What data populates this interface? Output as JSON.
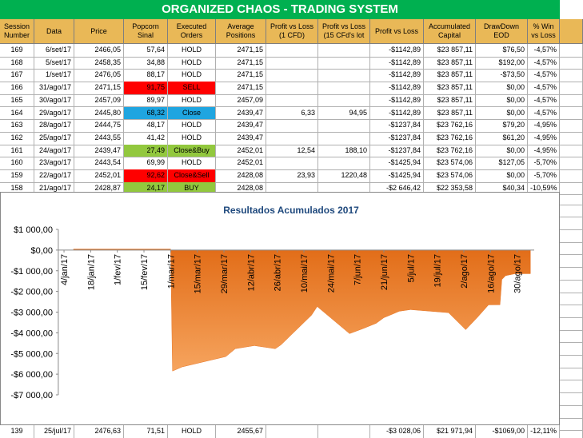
{
  "header": {
    "title": "ORGANIZED CHAOS - TRADING SYSTEM"
  },
  "table": {
    "columns": [
      "Session Number",
      "Data",
      "Price",
      "Popcorn Sinal",
      "Executed Orders",
      "Average Positions",
      "Profit vs Loss (1 CFD)",
      "Profit vs Loss (15 CFd's lot",
      "Profit vs Loss",
      "Accumulated Capital",
      "DrawDown EOD",
      "% Win vs Loss"
    ],
    "rows": [
      {
        "cells": [
          "169",
          "6/set/17",
          "2466,05",
          "57,64",
          "HOLD",
          "2471,15",
          null,
          null,
          "-$1142,89",
          "$23 857,11",
          "$76,50",
          "-4,57%"
        ]
      },
      {
        "cells": [
          "168",
          "5/set/17",
          "2458,35",
          "34,88",
          "HOLD",
          "2471,15",
          null,
          null,
          "-$1142,89",
          "$23 857,11",
          "$192,00",
          "-4,57%"
        ]
      },
      {
        "cells": [
          "167",
          "1/set/17",
          "2476,05",
          "88,17",
          "HOLD",
          "2471,15",
          null,
          null,
          "-$1142,89",
          "$23 857,11",
          "-$73,50",
          "-4,57%"
        ]
      },
      {
        "cells": [
          "166",
          "31/ago/17",
          "2471,15",
          "91,75",
          "SELL",
          "2471,15",
          null,
          null,
          "-$1142,89",
          "$23 857,11",
          "$0,00",
          "-4,57%"
        ],
        "highlight": "#ff0000"
      },
      {
        "cells": [
          "165",
          "30/ago/17",
          "2457,09",
          "89,97",
          "HOLD",
          "2457,09",
          null,
          null,
          "-$1142,89",
          "$23 857,11",
          "$0,00",
          "-4,57%"
        ]
      },
      {
        "cells": [
          "164",
          "29/ago/17",
          "2445,80",
          "68,32",
          "Close",
          "2439,47",
          "6,33",
          "94,95",
          "-$1142,89",
          "$23 857,11",
          "$0,00",
          "-4,57%"
        ],
        "highlight": "#1fa5e0"
      },
      {
        "cells": [
          "163",
          "28/ago/17",
          "2444,75",
          "48,17",
          "HOLD",
          "2439,47",
          null,
          null,
          "-$1237,84",
          "$23 762,16",
          "$79,20",
          "-4,95%"
        ]
      },
      {
        "cells": [
          "162",
          "25/ago/17",
          "2443,55",
          "41,42",
          "HOLD",
          "2439,47",
          null,
          null,
          "-$1237,84",
          "$23 762,16",
          "$61,20",
          "-4,95%"
        ]
      },
      {
        "cells": [
          "161",
          "24/ago/17",
          "2439,47",
          "27,49",
          "Close&Buy",
          "2452,01",
          "12,54",
          "188,10",
          "-$1237,84",
          "$23 762,16",
          "$0,00",
          "-4,95%"
        ],
        "highlight": "#92c83e"
      },
      {
        "cells": [
          "160",
          "23/ago/17",
          "2443,54",
          "69,99",
          "HOLD",
          "2452,01",
          null,
          null,
          "-$1425,94",
          "$23 574,06",
          "$127,05",
          "-5,70%"
        ]
      },
      {
        "cells": [
          "159",
          "22/ago/17",
          "2452,01",
          "92,62",
          "Close&Sell",
          "2428,08",
          "23,93",
          "1220,48",
          "-$1425,94",
          "$23 574,06",
          "$0,00",
          "-5,70%"
        ],
        "highlight": "#ff0000"
      },
      {
        "cells": [
          "158",
          "21/ago/17",
          "2428,87",
          "24,17",
          "BUY",
          "2428,08",
          null,
          null,
          "-$2 646,42",
          "$22 353,58",
          "$40,34",
          "-10,59%"
        ],
        "highlight": "#92c83e"
      }
    ],
    "last_row": {
      "cells": [
        "139",
        "25/jul/17",
        "2476,63",
        "71,51",
        "HOLD",
        "2455,67",
        null,
        null,
        "-$3 028,06",
        "$21 971,94",
        "-$1069,00",
        "-12,11%"
      ]
    }
  },
  "chart": {
    "type": "area",
    "title": "Resultados Acumulados 2017",
    "color": "#e8782a",
    "xlim": [
      "2017-01-01",
      "2017-09-08"
    ],
    "xticks": [
      {
        "value": "2017-01-04",
        "label": "4/jan/17"
      },
      {
        "value": "2017-01-18",
        "label": "18/jan/17"
      },
      {
        "value": "2017-02-01",
        "label": "1/fev/17"
      },
      {
        "value": "2017-02-15",
        "label": "15/fev/17"
      },
      {
        "value": "2017-03-01",
        "label": "1/mar/17"
      },
      {
        "value": "2017-03-15",
        "label": "15/mar/17"
      },
      {
        "value": "2017-03-29",
        "label": "29/mar/17"
      },
      {
        "value": "2017-04-12",
        "label": "12/abr/17"
      },
      {
        "value": "2017-04-26",
        "label": "26/abr/17"
      },
      {
        "value": "2017-05-10",
        "label": "10/mai/17"
      },
      {
        "value": "2017-05-24",
        "label": "24/mai/17"
      },
      {
        "value": "2017-06-07",
        "label": "7/jun/17"
      },
      {
        "value": "2017-06-21",
        "label": "21/jun/17"
      },
      {
        "value": "2017-07-05",
        "label": "5/jul/17"
      },
      {
        "value": "2017-07-19",
        "label": "19/jul/17"
      },
      {
        "value": "2017-08-02",
        "label": "2/ago/17"
      },
      {
        "value": "2017-08-16",
        "label": "16/ago/17"
      },
      {
        "value": "2017-08-30",
        "label": "30/ago/17"
      }
    ],
    "ylim": [
      -7000,
      1000
    ],
    "yticks": [
      {
        "value": 1000,
        "label": "$1 000,00"
      },
      {
        "value": 0,
        "label": "$0,00"
      },
      {
        "value": -1000,
        "label": "-$1 000,00"
      },
      {
        "value": -2000,
        "label": "-$2 000,00"
      },
      {
        "value": -3000,
        "label": "-$3 000,00"
      },
      {
        "value": -4000,
        "label": "-$4 000,00"
      },
      {
        "value": -5000,
        "label": "-$5 000,00"
      },
      {
        "value": -6000,
        "label": "-$6 000,00"
      },
      {
        "value": -7000,
        "label": "-$7 000,00"
      }
    ],
    "x": [
      "2017-01-09",
      "2017-03-01",
      "2017-03-02",
      "2017-03-07",
      "2017-03-30",
      "2017-04-04",
      "2017-04-14",
      "2017-04-25",
      "2017-04-28",
      "2017-05-14",
      "2017-05-17",
      "2017-06-03",
      "2017-06-10",
      "2017-06-17",
      "2017-06-21",
      "2017-06-26",
      "2017-06-29",
      "2017-07-05",
      "2017-07-25",
      "2017-08-03",
      "2017-08-09",
      "2017-08-15",
      "2017-08-21",
      "2017-08-22",
      "2017-08-24",
      "2017-08-29",
      "2017-09-06"
    ],
    "values": [
      50,
      50,
      -5850,
      -5650,
      -5150,
      -4770,
      -4620,
      -4770,
      -4580,
      -3150,
      -2730,
      -4040,
      -3800,
      -3540,
      -3270,
      -3080,
      -2960,
      -2880,
      -3028,
      -3850,
      -3270,
      -2650,
      -2646,
      -1426,
      -1238,
      -1143,
      -1143
    ]
  }
}
